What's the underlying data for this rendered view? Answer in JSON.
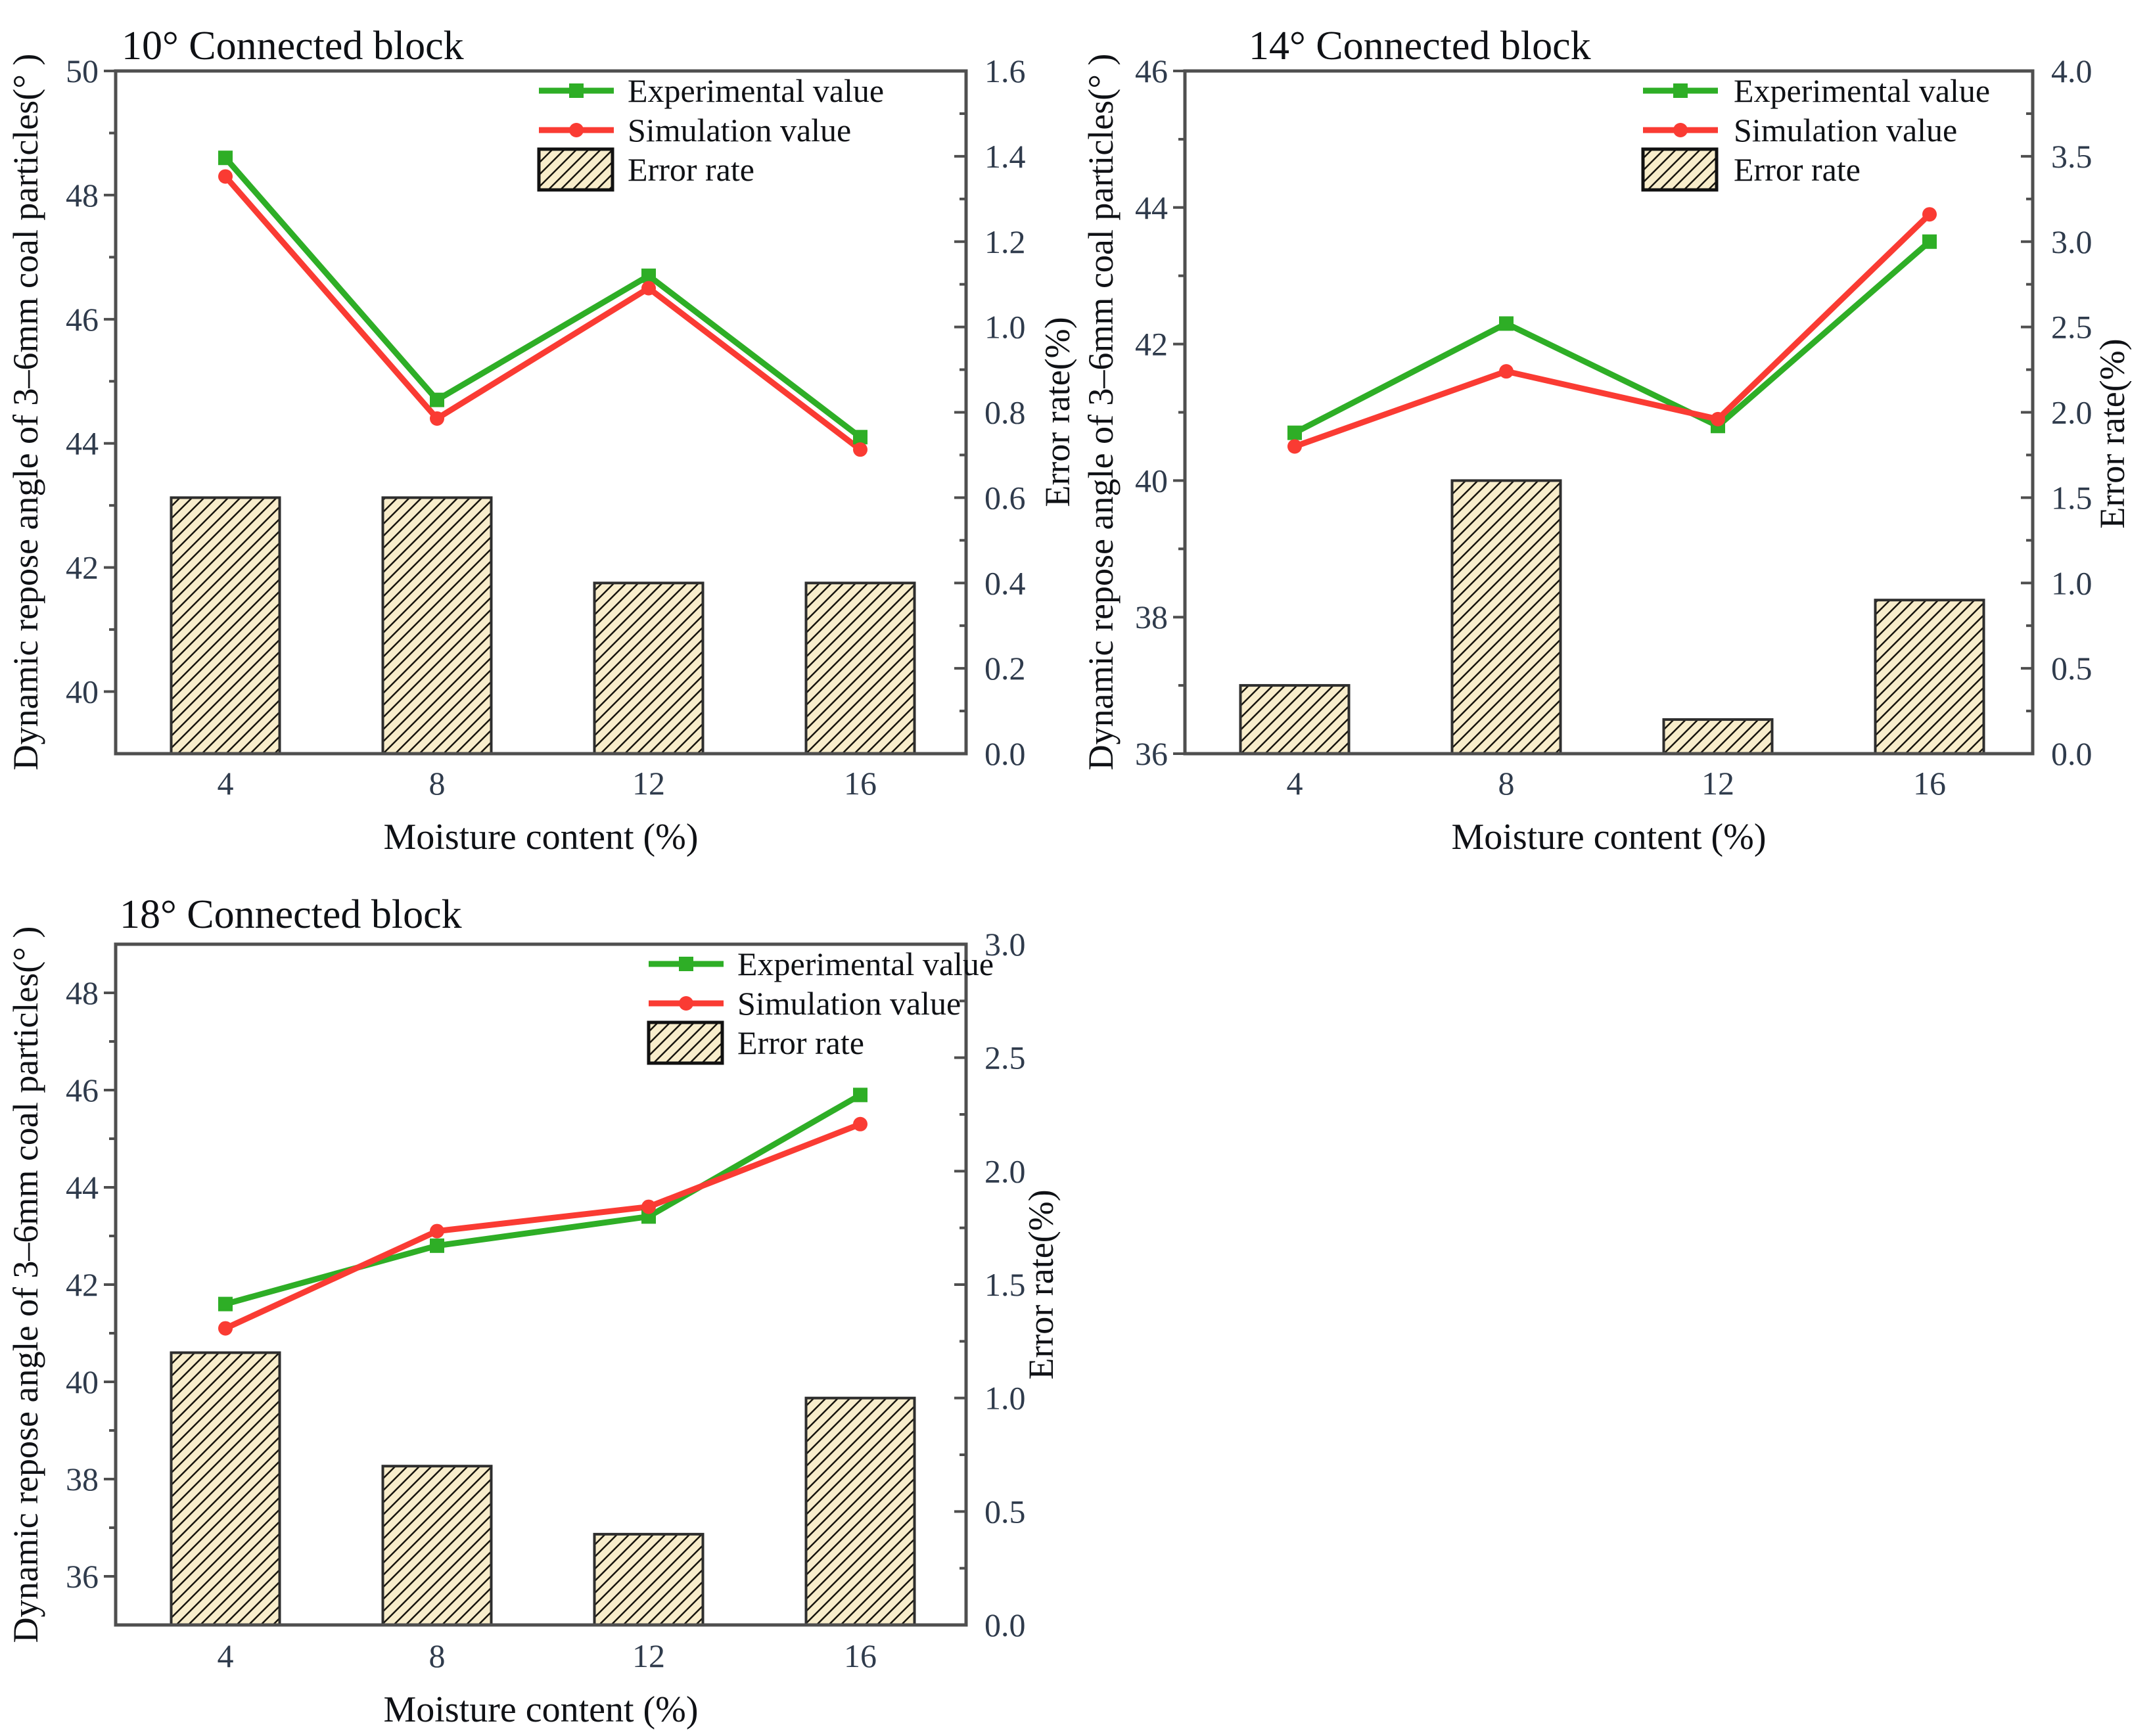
{
  "figure": {
    "background": "#ffffff",
    "legend_labels": [
      "Experimental value",
      "Simulation value",
      "Error rate"
    ]
  },
  "colors": {
    "experimental": "#2EAE26",
    "simulation": "#FA3B33",
    "bar_fill": "#F8EDCB",
    "bar_hatch": "#17140D",
    "bar_border": "#2E2E2E",
    "axis": "#4F4F4F",
    "tick_text": "#2F3B4C",
    "text": "#0F1115"
  },
  "chart_data": [
    {
      "type": "line-bar-combo",
      "title": "10° Connected block",
      "xlabel": "Moisture content (%)",
      "ylabel_left": "Dynamic repose angle of 3–6mm coal particles(° )",
      "ylabel_right": "Error rate(%)",
      "categories": [
        "4",
        "8",
        "12",
        "16"
      ],
      "series": [
        {
          "name": "Experimental value",
          "type": "line",
          "marker": "square",
          "axis": "left",
          "values": [
            48.6,
            44.7,
            46.7,
            44.1
          ]
        },
        {
          "name": "Simulation value",
          "type": "line",
          "marker": "circle",
          "axis": "left",
          "values": [
            48.3,
            44.4,
            46.5,
            43.9
          ]
        },
        {
          "name": "Error rate",
          "type": "bar",
          "marker": "hatch",
          "axis": "right",
          "values": [
            0.6,
            0.6,
            0.4,
            0.4
          ]
        }
      ],
      "left_axis": {
        "min": 39,
        "max": 50,
        "ticks": [
          40,
          42,
          44,
          46,
          48,
          50
        ],
        "tick_labels": [
          "40",
          "42",
          "44",
          "46",
          "48",
          "50"
        ],
        "minor": [
          41,
          43,
          45,
          47,
          49
        ]
      },
      "right_axis": {
        "min": 0,
        "max": 1.6,
        "ticks": [
          0,
          0.2,
          0.4,
          0.6,
          0.8,
          1.0,
          1.2,
          1.4,
          1.6
        ],
        "tick_labels": [
          "0.0",
          "0.2",
          "0.4",
          "0.6",
          "0.8",
          "1.0",
          "1.2",
          "1.4",
          "1.6"
        ],
        "minor": [
          0.1,
          0.3,
          0.5,
          0.7,
          0.9,
          1.1,
          1.3,
          1.5
        ]
      },
      "legend_position": "top-center",
      "grid": false
    },
    {
      "type": "line-bar-combo",
      "title": "14° Connected block",
      "xlabel": "Moisture content (%)",
      "ylabel_left": "Dynamic repose angle of 3–6mm coal particles(° )",
      "ylabel_right": "Error rate(%)",
      "categories": [
        "4",
        "8",
        "12",
        "16"
      ],
      "series": [
        {
          "name": "Experimental value",
          "type": "line",
          "marker": "square",
          "axis": "left",
          "values": [
            40.7,
            42.3,
            40.8,
            43.5
          ]
        },
        {
          "name": "Simulation value",
          "type": "line",
          "marker": "circle",
          "axis": "left",
          "values": [
            40.5,
            41.6,
            40.9,
            43.9
          ]
        },
        {
          "name": "Error rate",
          "type": "bar",
          "marker": "hatch",
          "axis": "right",
          "values": [
            0.4,
            1.6,
            0.2,
            0.9
          ]
        }
      ],
      "left_axis": {
        "min": 36,
        "max": 46,
        "ticks": [
          36,
          38,
          40,
          42,
          44,
          46
        ],
        "tick_labels": [
          "36",
          "38",
          "40",
          "42",
          "44",
          "46"
        ],
        "minor": [
          37,
          39,
          41,
          43,
          45
        ]
      },
      "right_axis": {
        "min": 0,
        "max": 4.0,
        "ticks": [
          0,
          0.5,
          1.0,
          1.5,
          2.0,
          2.5,
          3.0,
          3.5,
          4.0
        ],
        "tick_labels": [
          "0.0",
          "0.5",
          "1.0",
          "1.5",
          "2.0",
          "2.5",
          "3.0",
          "3.5",
          "4.0"
        ],
        "minor": [
          0.25,
          0.75,
          1.25,
          1.75,
          2.25,
          2.75,
          3.25,
          3.75
        ]
      },
      "legend_position": "top-right",
      "grid": false
    },
    {
      "type": "line-bar-combo",
      "title": "18° Connected block",
      "xlabel": "Moisture content (%)",
      "ylabel_left": "Dynamic repose angle of 3–6mm coal particles(° )",
      "ylabel_right": "Error rate(%)",
      "categories": [
        "4",
        "8",
        "12",
        "16"
      ],
      "series": [
        {
          "name": "Experimental value",
          "type": "line",
          "marker": "square",
          "axis": "left",
          "values": [
            41.6,
            42.8,
            43.4,
            45.9
          ]
        },
        {
          "name": "Simulation value",
          "type": "line",
          "marker": "circle",
          "axis": "left",
          "values": [
            41.1,
            43.1,
            43.6,
            45.3
          ]
        },
        {
          "name": "Error rate",
          "type": "bar",
          "marker": "hatch",
          "axis": "right",
          "values": [
            1.2,
            0.7,
            0.4,
            1.0
          ]
        }
      ],
      "left_axis": {
        "min": 35,
        "max": 49,
        "ticks": [
          36,
          38,
          40,
          42,
          44,
          46,
          48
        ],
        "tick_labels": [
          "36",
          "38",
          "40",
          "42",
          "44",
          "46",
          "48"
        ],
        "minor": [
          37,
          39,
          41,
          43,
          45,
          47
        ]
      },
      "right_axis": {
        "min": 0,
        "max": 3.0,
        "ticks": [
          0,
          0.5,
          1.0,
          1.5,
          2.0,
          2.5,
          3.0
        ],
        "tick_labels": [
          "0.0",
          "0.5",
          "1.0",
          "1.5",
          "2.0",
          "2.5",
          "3.0"
        ],
        "minor": [
          0.25,
          0.75,
          1.25,
          1.75,
          2.25,
          2.75
        ]
      },
      "legend_position": "top-center-right",
      "grid": false
    }
  ]
}
